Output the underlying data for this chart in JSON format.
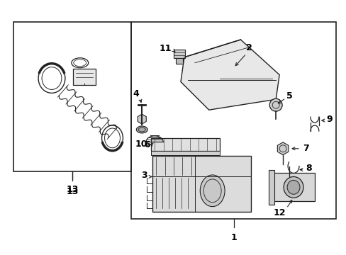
{
  "background_color": "#ffffff",
  "line_color": "#222222",
  "text_color": "#000000",
  "fig_width": 4.89,
  "fig_height": 3.6,
  "dpi": 100
}
